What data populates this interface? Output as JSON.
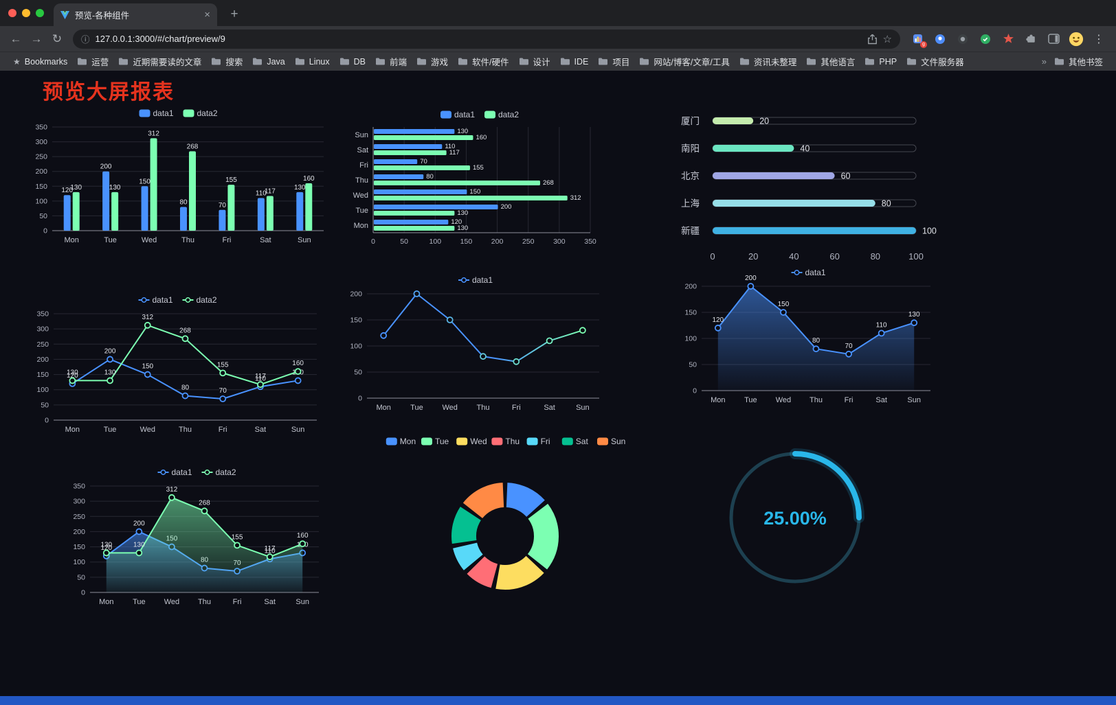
{
  "browser": {
    "tab_title": "预览-各种组件",
    "url": "127.0.0.1:3000/#/chart/preview/9",
    "bookmarks_label": "Bookmarks",
    "bookmarks": [
      "运营",
      "近期需要读的文章",
      "搜索",
      "Java",
      "Linux",
      "DB",
      "前端",
      "游戏",
      "软件/硬件",
      "设计",
      "IDE",
      "项目",
      "网站/博客/文章/工具",
      "资讯未整理",
      "其他语言",
      "PHP",
      "文件服务器"
    ],
    "bookmarks_overflow": "»",
    "other_bookmarks": "其他书签",
    "icons": {
      "back": "←",
      "forward": "→",
      "reload": "↻",
      "info": "ⓘ",
      "star": "☆",
      "star_filled": "★",
      "menu": "⋮",
      "new_tab": "+",
      "close_tab": "×",
      "ext_badge": "g"
    }
  },
  "page": {
    "title": "预览大屏报表"
  },
  "palette": {
    "series_blue": "#4992ff",
    "series_green": "#7cffb2",
    "title_red": "#e5331e",
    "footer_blue": "#2257c4",
    "gauge_cyan": "#29b7ea",
    "background": "#0c0d15"
  },
  "chart_data": [
    {
      "type": "bar",
      "categories": [
        "Mon",
        "Tue",
        "Wed",
        "Thu",
        "Fri",
        "Sat",
        "Sun"
      ],
      "series": [
        {
          "name": "data1",
          "color": "#4992ff",
          "values": [
            120,
            200,
            150,
            80,
            70,
            110,
            130
          ]
        },
        {
          "name": "data2",
          "color": "#7cffb2",
          "values": [
            130,
            130,
            312,
            268,
            155,
            117,
            160
          ]
        }
      ],
      "ylim": [
        0,
        350
      ],
      "ytick": 50,
      "labels": true,
      "legend_position": "top",
      "grid": true
    },
    {
      "type": "bar-horizontal",
      "categories": [
        "Mon",
        "Tue",
        "Wed",
        "Thu",
        "Fri",
        "Sat",
        "Sun"
      ],
      "display_order": "Sun-at-top",
      "series": [
        {
          "name": "data1",
          "color": "#4992ff",
          "values": [
            120,
            200,
            150,
            80,
            70,
            110,
            130
          ]
        },
        {
          "name": "data2",
          "color": "#7cffb2",
          "values": [
            130,
            130,
            312,
            268,
            155,
            117,
            160
          ]
        }
      ],
      "xlim": [
        0,
        350
      ],
      "xtick": 50,
      "labels": true,
      "legend_position": "top",
      "grid": true
    },
    {
      "type": "capsule",
      "rows": [
        {
          "label": "厦门",
          "value": 20,
          "color": "#c4ebad"
        },
        {
          "label": "南阳",
          "value": 40,
          "color": "#6be6c1"
        },
        {
          "label": "北京",
          "value": 60,
          "color": "#a0a7e6"
        },
        {
          "label": "上海",
          "value": 80,
          "color": "#96dee8"
        },
        {
          "label": "新疆",
          "value": 100,
          "color": "#3fb1e3"
        }
      ],
      "xlim": [
        0,
        100
      ],
      "xticks": [
        0,
        20,
        40,
        60,
        80,
        100
      ]
    },
    {
      "type": "line",
      "categories": [
        "Mon",
        "Tue",
        "Wed",
        "Thu",
        "Fri",
        "Sat",
        "Sun"
      ],
      "series": [
        {
          "name": "data1",
          "color": "#4992ff",
          "values": [
            120,
            200,
            150,
            80,
            70,
            110,
            130
          ]
        },
        {
          "name": "data2",
          "color": "#7cffb2",
          "values": [
            130,
            130,
            312,
            268,
            155,
            117,
            160
          ]
        }
      ],
      "ylim": [
        0,
        350
      ],
      "ytick": 50,
      "labels": true,
      "legend_position": "top",
      "grid": true
    },
    {
      "type": "line",
      "categories": [
        "Mon",
        "Tue",
        "Wed",
        "Thu",
        "Fri",
        "Sat",
        "Sun"
      ],
      "series": [
        {
          "name": "data1",
          "gradient": [
            "#4992ff",
            "#7cffb2"
          ],
          "values": [
            120,
            200,
            150,
            80,
            70,
            110,
            130
          ]
        }
      ],
      "ylim": [
        0,
        200
      ],
      "ytick": 50,
      "labels": false,
      "legend_position": "top",
      "grid": true
    },
    {
      "type": "area",
      "categories": [
        "Mon",
        "Tue",
        "Wed",
        "Thu",
        "Fri",
        "Sat",
        "Sun"
      ],
      "series": [
        {
          "name": "data1",
          "color": "#4992ff",
          "values": [
            120,
            200,
            150,
            80,
            70,
            110,
            130
          ]
        }
      ],
      "ylim": [
        0,
        200
      ],
      "ytick": 50,
      "labels": true,
      "legend_position": "top",
      "grid": true
    },
    {
      "type": "area",
      "categories": [
        "Mon",
        "Tue",
        "Wed",
        "Thu",
        "Fri",
        "Sat",
        "Sun"
      ],
      "series": [
        {
          "name": "data1",
          "color": "#4992ff",
          "values": [
            120,
            200,
            150,
            80,
            70,
            110,
            130
          ]
        },
        {
          "name": "data2",
          "color": "#7cffb2",
          "values": [
            130,
            130,
            312,
            268,
            155,
            117,
            160
          ]
        }
      ],
      "ylim": [
        0,
        350
      ],
      "ytick": 50,
      "labels": true,
      "legend_position": "top",
      "grid": true
    },
    {
      "type": "pie",
      "categories": [
        "Mon",
        "Tue",
        "Wed",
        "Thu",
        "Fri",
        "Sat",
        "Sun"
      ],
      "values": [
        120,
        200,
        150,
        80,
        70,
        110,
        130
      ],
      "colors": [
        "#4992ff",
        "#7cffb2",
        "#fddd60",
        "#ff6e76",
        "#58d9f9",
        "#05c091",
        "#ff8a45"
      ],
      "legend_position": "top",
      "donut": true
    },
    {
      "type": "gauge",
      "value": 25,
      "label": "25.00%",
      "color": "#29b7ea",
      "track": "#1d4050"
    }
  ]
}
